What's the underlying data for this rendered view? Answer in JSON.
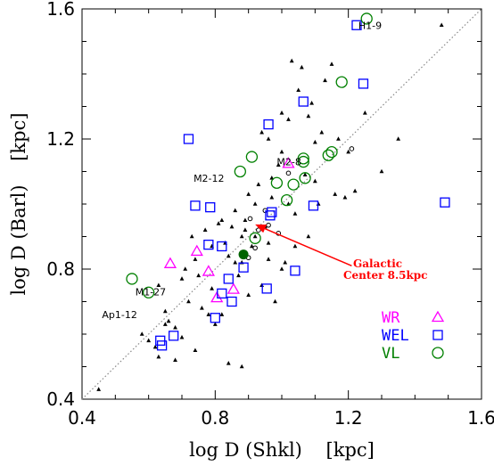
{
  "colors": {
    "wr": "#ff00ff",
    "wel": "#0000ff",
    "vl": "#008000",
    "other": "#000000",
    "galactic_center": "#006400",
    "arrow": "#ff0000",
    "diagonal": "#888888"
  },
  "chart_data": {
    "type": "scatter",
    "title": "",
    "xlabel": "log D (Shkl)    [kpc]",
    "ylabel": "log D (Barl)    [kpc]",
    "xlim": [
      0.4,
      1.6
    ],
    "ylim": [
      0.4,
      1.6
    ],
    "xticks": [
      "0.4",
      "0.8",
      "1.2",
      "1.6"
    ],
    "yticks": [
      "0.4",
      "0.8",
      "1.2",
      "1.6"
    ],
    "grid": false,
    "diagonal_line": "y = x (dotted)",
    "legend_position": "bottom-right",
    "series": [
      {
        "name": "WR",
        "marker": "triangle-open",
        "x": [
          0.665,
          0.745,
          0.78,
          0.805,
          0.855,
          1.02
        ],
        "y": [
          0.817,
          0.855,
          0.793,
          0.712,
          0.738,
          1.125
        ]
      },
      {
        "name": "WEL",
        "marker": "square-open",
        "x": [
          1.225,
          1.245,
          0.72,
          0.96,
          1.065,
          1.49,
          0.74,
          0.785,
          0.97,
          0.965,
          1.095,
          0.78,
          0.82,
          0.84,
          0.885,
          0.85,
          0.82,
          0.8,
          0.955,
          1.04,
          0.675,
          0.635,
          0.64
        ],
        "y": [
          1.55,
          1.37,
          1.2,
          1.245,
          1.315,
          1.005,
          0.995,
          0.99,
          0.975,
          0.965,
          0.995,
          0.875,
          0.87,
          0.77,
          0.805,
          0.7,
          0.725,
          0.65,
          0.74,
          0.795,
          0.595,
          0.58,
          0.565
        ]
      },
      {
        "name": "VL",
        "marker": "circle-open",
        "x": [
          1.255,
          1.18,
          1.15,
          0.91,
          0.875,
          1.065,
          1.07,
          1.14,
          0.985,
          1.015,
          1.035,
          0.92,
          1.065,
          0.55,
          0.6
        ],
        "y": [
          1.57,
          1.375,
          1.16,
          1.145,
          1.1,
          1.14,
          1.08,
          1.15,
          1.065,
          1.012,
          1.06,
          0.895,
          1.13,
          0.77,
          0.728
        ]
      },
      {
        "name": "",
        "marker": "triangle-filled-small",
        "x": [
          0.45,
          0.58,
          0.6,
          0.62,
          0.63,
          0.65,
          0.66,
          0.68,
          0.7,
          0.72,
          0.74,
          0.76,
          0.77,
          0.79,
          0.8,
          0.81,
          0.82,
          0.83,
          0.84,
          0.86,
          0.87,
          0.88,
          0.89,
          0.9,
          0.91,
          0.92,
          0.93,
          0.94,
          0.95,
          0.96,
          0.97,
          0.98,
          0.99,
          1.0,
          1.01,
          1.02,
          1.03,
          1.04,
          1.05,
          1.06,
          1.07,
          1.08,
          1.09,
          1.1,
          1.11,
          1.12,
          1.13,
          1.15,
          1.17,
          1.19,
          1.2,
          1.22,
          1.25,
          1.3,
          1.35,
          1.48,
          0.63,
          0.68,
          0.71,
          0.73,
          0.75,
          0.78,
          0.82,
          0.86,
          0.9,
          0.94,
          0.97,
          1.0,
          1.04,
          1.08,
          0.84,
          0.88,
          0.96,
          1.0,
          1.02,
          1.1,
          1.16,
          0.92,
          0.96,
          0.89,
          0.79,
          0.74,
          0.85,
          0.88,
          0.65,
          0.7
        ],
        "y": [
          0.43,
          0.6,
          0.58,
          0.56,
          0.75,
          0.67,
          0.64,
          0.62,
          0.77,
          0.7,
          0.55,
          0.68,
          0.92,
          0.87,
          0.63,
          0.94,
          0.66,
          0.88,
          0.84,
          0.98,
          0.78,
          0.9,
          0.95,
          1.03,
          0.87,
          0.9,
          1.06,
          1.22,
          0.93,
          1.2,
          1.08,
          0.7,
          1.12,
          1.28,
          0.82,
          1.0,
          1.44,
          0.87,
          1.35,
          1.42,
          1.09,
          1.27,
          1.31,
          1.07,
          1.0,
          1.22,
          1.38,
          1.43,
          1.2,
          1.02,
          1.16,
          1.04,
          1.28,
          1.1,
          1.2,
          1.55,
          0.53,
          0.52,
          0.8,
          0.9,
          0.78,
          0.66,
          0.95,
          0.82,
          0.72,
          0.75,
          1.02,
          0.8,
          0.97,
          0.9,
          0.51,
          0.5,
          0.83,
          1.16,
          1.26,
          1.19,
          1.03,
          1.0,
          0.88,
          0.92,
          0.74,
          0.83,
          0.93,
          0.82,
          0.63,
          0.59
        ]
      },
      {
        "name": "",
        "marker": "circle-open-small",
        "x": [
          0.905,
          0.93,
          0.96,
          0.99,
          1.02,
          0.92,
          0.9,
          1.21,
          0.95
        ],
        "y": [
          0.955,
          0.92,
          0.935,
          0.91,
          1.095,
          0.865,
          0.835,
          1.17,
          0.98
        ]
      }
    ],
    "galactic_center": {
      "x": 0.885,
      "y": 0.845
    },
    "annotations": [
      {
        "text": "H1-9",
        "x": 1.23,
        "y": 1.55
      },
      {
        "text": "M2-8",
        "x": 0.985,
        "y": 1.13
      },
      {
        "text": "M2-12",
        "x": 0.735,
        "y": 1.08
      },
      {
        "text": "M1-27",
        "x": 0.56,
        "y": 0.73
      },
      {
        "text": "Ap1-12",
        "x": 0.46,
        "y": 0.66
      }
    ],
    "arrow_annotation": {
      "lines": [
        "Galactic",
        "Center 8.5kpc"
      ],
      "arrow_from": {
        "x": 1.21,
        "y": 0.81
      },
      "arrow_to": {
        "x": 0.925,
        "y": 0.935
      }
    },
    "legend": [
      {
        "label": "WR",
        "marker": "triangle-open",
        "color": "#ff00ff"
      },
      {
        "label": "WEL",
        "marker": "square-open",
        "color": "#0000ff"
      },
      {
        "label": "VL",
        "marker": "circle-open",
        "color": "#008000"
      }
    ]
  }
}
